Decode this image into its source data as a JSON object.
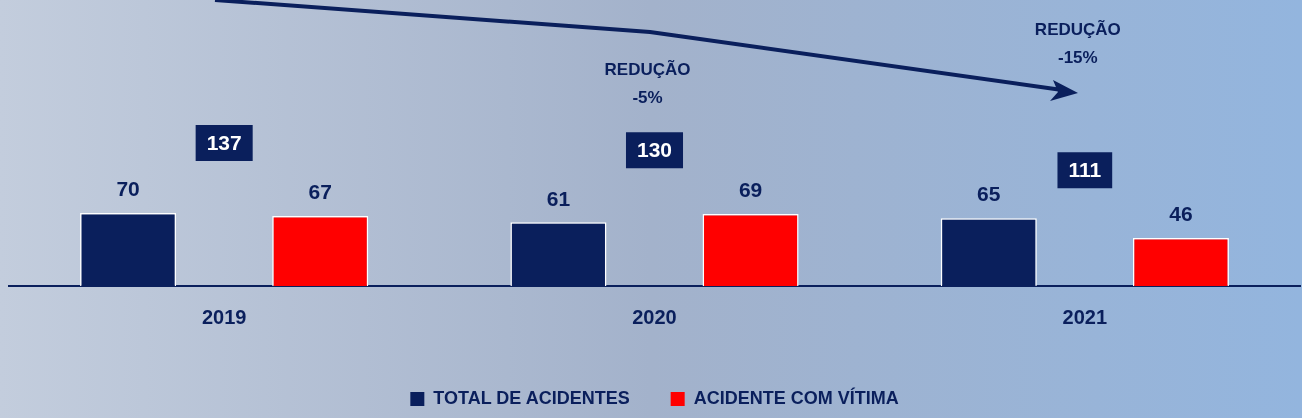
{
  "chart_data": {
    "type": "bar",
    "categories": [
      "2019",
      "2020",
      "2021"
    ],
    "series": [
      {
        "name": "TOTAL DE ACIDENTES",
        "color": "#0a1f5c",
        "values": [
          70,
          61,
          65
        ]
      },
      {
        "name": "ACIDENTE COM VÍTIMA",
        "color": "#ff0000",
        "values": [
          67,
          69,
          46
        ]
      }
    ],
    "data_labels": true,
    "totals": [
      "137",
      "130",
      "111"
    ],
    "legend": "bottom",
    "grid": false,
    "annotations": [
      "REDUÇÃO\n-5%",
      "REDUÇÃO\n-15%"
    ]
  }
}
